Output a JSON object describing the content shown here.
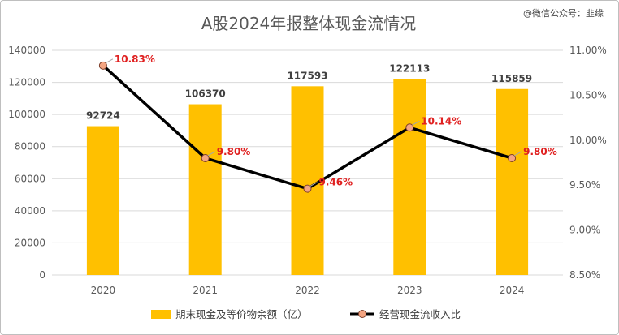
{
  "watermark": "@微信公众号：韭缘",
  "chart_data": {
    "type": "bar",
    "title": "A股2024年报整体现金流情况",
    "categories": [
      "2020",
      "2021",
      "2022",
      "2023",
      "2024"
    ],
    "series": [
      {
        "name": "期末现金及等价物余额（亿）",
        "kind": "bar",
        "axis": "left",
        "values": [
          92724,
          106370,
          117593,
          122113,
          115859
        ],
        "labels": [
          "92724",
          "106370",
          "117593",
          "122113",
          "115859"
        ],
        "color": "#FFC000"
      },
      {
        "name": "经营现金流收入比",
        "kind": "line",
        "axis": "right",
        "values": [
          10.83,
          9.8,
          9.46,
          10.14,
          9.8
        ],
        "labels": [
          "10.83%",
          "9.80%",
          "9.46%",
          "10.14%",
          "9.80%"
        ],
        "color": "#000000",
        "marker_color": "#F4A582",
        "label_color": "#E02020"
      }
    ],
    "y_left": {
      "range": [
        0,
        140000
      ],
      "ticks": [
        "0",
        "20000",
        "40000",
        "60000",
        "80000",
        "100000",
        "120000",
        "140000"
      ]
    },
    "y_right": {
      "range": [
        8.5,
        11.0
      ],
      "ticks": [
        "8.50%",
        "9.00%",
        "9.50%",
        "10.00%",
        "10.50%",
        "11.00%"
      ]
    },
    "grid": true,
    "legend_position": "bottom"
  }
}
